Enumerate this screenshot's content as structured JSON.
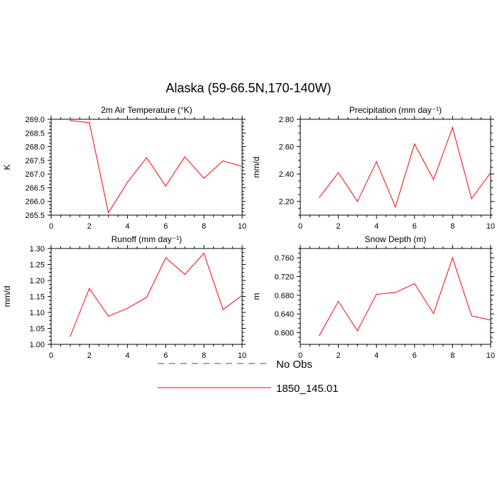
{
  "title": "Alaska (59-66.5N,170-140W)",
  "colors": {
    "model": "#ff0000",
    "obs": "#3c3cff",
    "axis": "#000000"
  },
  "legend": [
    {
      "label": "No Obs",
      "style": "dashed",
      "color": "#3c3cff"
    },
    {
      "label": "1850_145.01",
      "style": "solid",
      "color": "#ff0000"
    }
  ],
  "chart_data": [
    {
      "type": "line",
      "title": "2m Air Temperature (°K)",
      "ylabel": "K",
      "xlim": [
        0,
        10
      ],
      "ylim": [
        265.5,
        269.0
      ],
      "xticks": [
        "0",
        "2",
        "4",
        "6",
        "8",
        "10"
      ],
      "yticks": [
        "265.5",
        "266.0",
        "266.5",
        "267.0",
        "267.5",
        "268.0",
        "268.5",
        "269.0"
      ],
      "x": [
        1,
        2,
        3,
        4,
        5,
        6,
        7,
        8,
        9,
        10
      ],
      "series": [
        {
          "name": "1850_145.01",
          "values": [
            268.95,
            268.88,
            265.59,
            266.7,
            267.6,
            266.56,
            267.63,
            266.85,
            267.48,
            267.28
          ]
        }
      ]
    },
    {
      "type": "line",
      "title": "Precipitation (mm day⁻¹)",
      "ylabel": "mm/d",
      "xlim": [
        0,
        10
      ],
      "ylim": [
        2.1,
        2.8
      ],
      "xticks": [
        "0",
        "2",
        "4",
        "6",
        "8",
        "10"
      ],
      "yticks": [
        "2.20",
        "2.40",
        "2.60",
        "2.80"
      ],
      "x": [
        1,
        2,
        3,
        4,
        5,
        6,
        7,
        8,
        9,
        10
      ],
      "series": [
        {
          "name": "1850_145.01",
          "values": [
            2.23,
            2.41,
            2.2,
            2.49,
            2.16,
            2.62,
            2.36,
            2.74,
            2.22,
            2.41
          ]
        }
      ]
    },
    {
      "type": "line",
      "title": "Runoff (mm day⁻¹)",
      "ylabel": "mm/d",
      "xlim": [
        0,
        10
      ],
      "ylim": [
        1.0,
        1.3
      ],
      "xticks": [
        "0",
        "2",
        "4",
        "6",
        "8",
        "10"
      ],
      "yticks": [
        "1.00",
        "1.05",
        "1.10",
        "1.15",
        "1.20",
        "1.25",
        "1.30"
      ],
      "x": [
        1,
        2,
        3,
        4,
        5,
        6,
        7,
        8,
        9,
        10
      ],
      "series": [
        {
          "name": "1850_145.01",
          "values": [
            1.025,
            1.175,
            1.088,
            1.113,
            1.147,
            1.271,
            1.219,
            1.285,
            1.109,
            1.153
          ]
        }
      ]
    },
    {
      "type": "line",
      "title": "Snow Depth (m)",
      "ylabel": "m",
      "xlim": [
        0,
        10
      ],
      "ylim": [
        0.575,
        0.78
      ],
      "xticks": [
        "0",
        "2",
        "4",
        "6",
        "8",
        "10"
      ],
      "yticks": [
        "0.600",
        "0.640",
        "0.680",
        "0.720",
        "0.760"
      ],
      "x": [
        1,
        2,
        3,
        4,
        5,
        6,
        7,
        8,
        9,
        10
      ],
      "series": [
        {
          "name": "1850_145.01",
          "values": [
            0.594,
            0.667,
            0.604,
            0.682,
            0.686,
            0.705,
            0.641,
            0.76,
            0.636,
            0.627
          ]
        }
      ]
    }
  ]
}
